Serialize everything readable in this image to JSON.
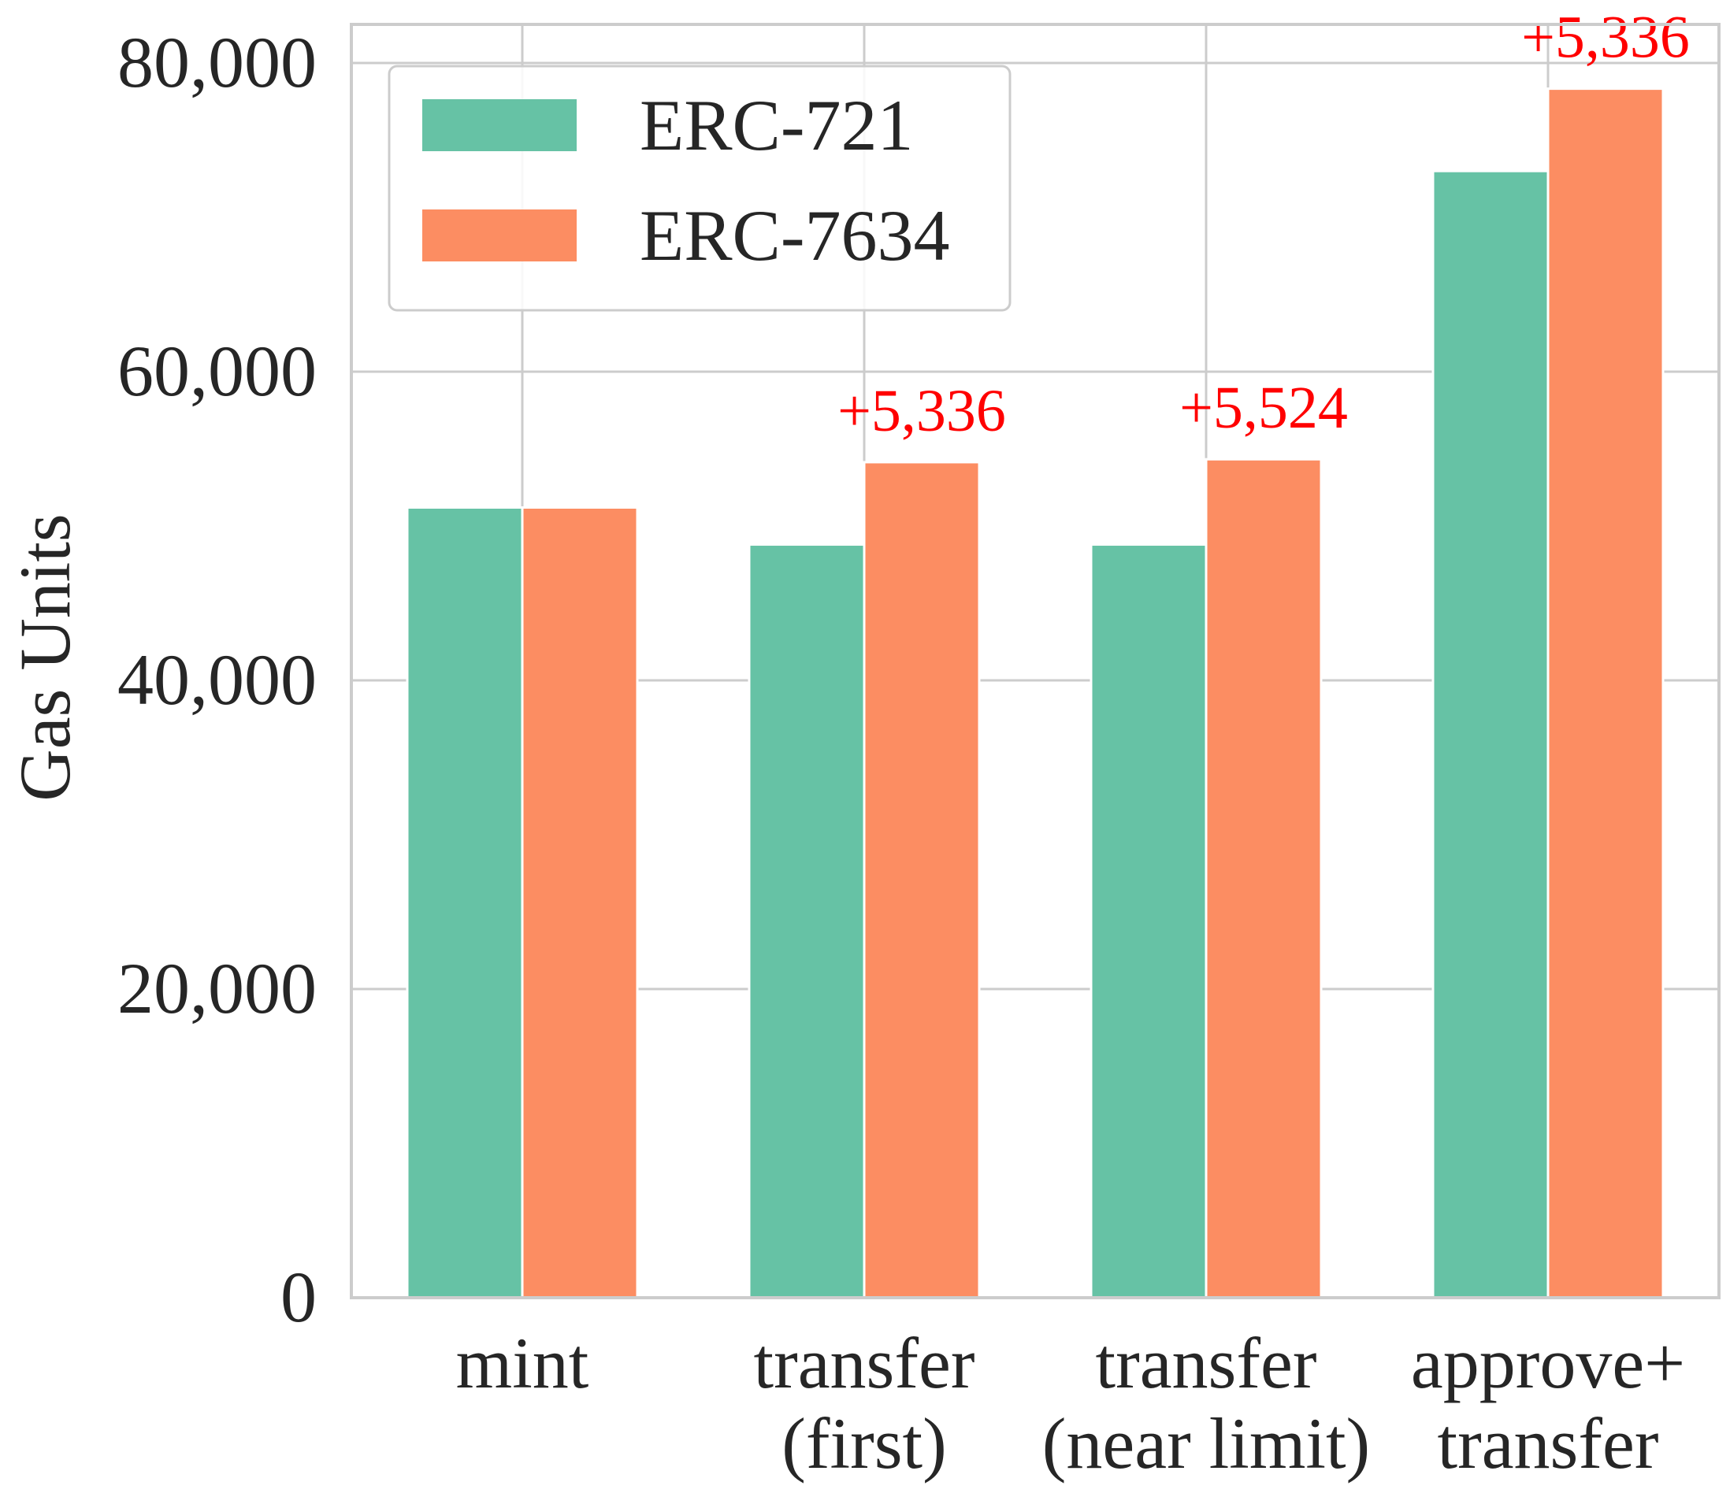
{
  "chart_data": {
    "type": "bar",
    "ylabel": "Gas Units",
    "ylim": [
      0,
      82500
    ],
    "yticks": [
      {
        "value": 0,
        "label": "0"
      },
      {
        "value": 20000,
        "label": "20,000"
      },
      {
        "value": 40000,
        "label": "40,000"
      },
      {
        "value": 60000,
        "label": "60,000"
      },
      {
        "value": 80000,
        "label": "80,000"
      }
    ],
    "categories": [
      {
        "lines": [
          "mint"
        ]
      },
      {
        "lines": [
          "transfer",
          "(first)"
        ]
      },
      {
        "lines": [
          "transfer",
          "(near limit)"
        ]
      },
      {
        "lines": [
          "approve+",
          "transfer"
        ]
      }
    ],
    "series": [
      {
        "name": "ERC-721",
        "color": "#66c2a5",
        "values": [
          51200,
          48800,
          48800,
          73000
        ]
      },
      {
        "name": "ERC-7634",
        "color": "#fc8d62",
        "values": [
          51200,
          54136,
          54324,
          78336
        ]
      }
    ],
    "annotations": [
      {
        "category_index": 1,
        "text": "+5,336"
      },
      {
        "category_index": 2,
        "text": "+5,524"
      },
      {
        "category_index": 3,
        "text": "+5,336"
      }
    ],
    "legend": {
      "placement": "top-left"
    },
    "grid": true,
    "colors": {
      "grid": "#cccccc",
      "spine": "#cccccc",
      "annotation": "#ff0000",
      "text": "#262626"
    }
  }
}
